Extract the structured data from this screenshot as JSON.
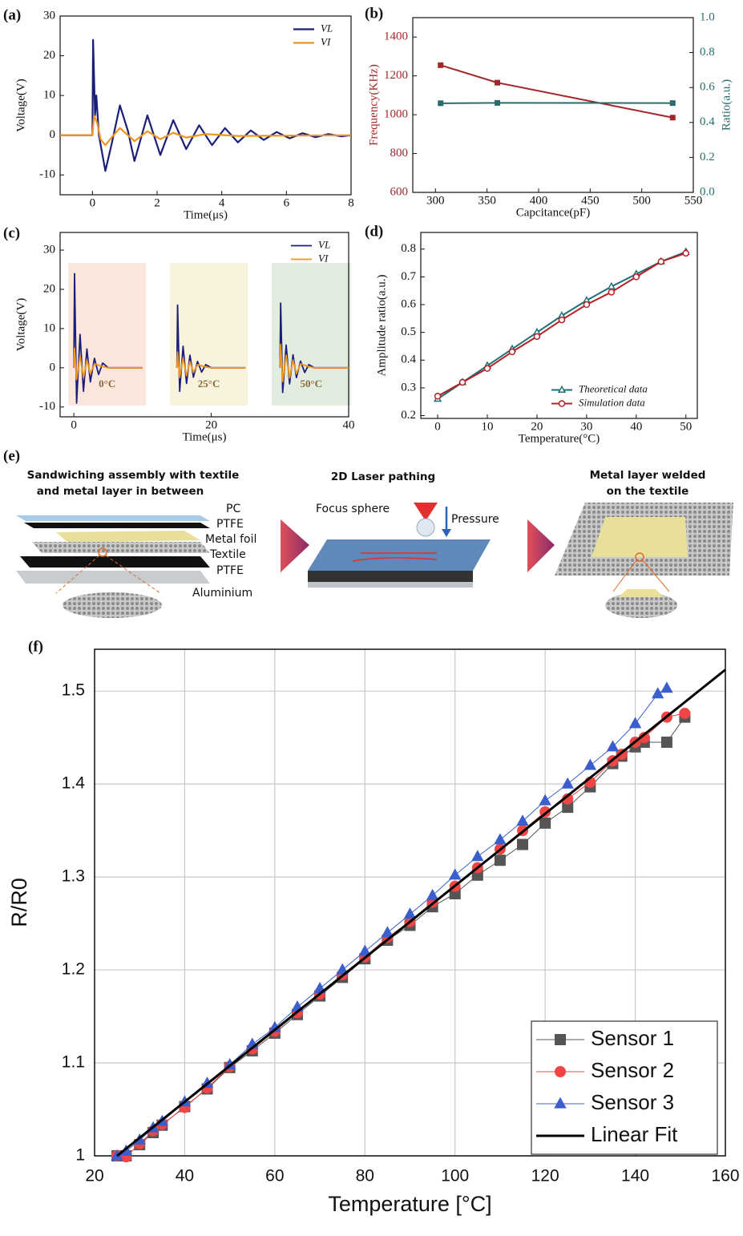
{
  "chart_data": [
    {
      "type": "line",
      "label": "(a)",
      "xlabel": "Time(μs)",
      "ylabel": "Voltage(V)",
      "xlim": [
        -1,
        8
      ],
      "xticks": [
        0,
        2,
        4,
        6,
        8
      ],
      "ylim": [
        -15,
        30
      ],
      "yticks": [
        -10,
        0,
        10,
        20,
        30
      ],
      "legend": "upper right",
      "series": [
        {
          "name": "VL",
          "color": "#1b1f7a",
          "linewidth": 2.2,
          "x": [
            -1,
            0,
            0.02,
            0.08,
            0.12,
            0.2,
            0.4,
            0.6,
            0.85,
            1.1,
            1.3,
            1.7,
            2.1,
            2.5,
            2.9,
            3.3,
            3.7,
            4.1,
            4.5,
            4.9,
            5.3,
            5.7,
            6.1,
            6.5,
            6.9,
            7.3,
            7.7,
            8
          ],
          "values": [
            0,
            0,
            24,
            5,
            10,
            0,
            -9,
            -2,
            7.5,
            1,
            -6.5,
            5,
            -5,
            3.8,
            -3.5,
            2.5,
            -2.5,
            1.8,
            -1.8,
            1.2,
            -1.2,
            0.8,
            -0.8,
            0.5,
            -0.5,
            0.3,
            -0.3,
            0
          ]
        },
        {
          "name": "VI",
          "color": "#f0941c",
          "linewidth": 2.2,
          "x": [
            -1,
            0,
            0.05,
            0.15,
            0.25,
            0.4,
            0.6,
            0.85,
            1.3,
            1.7,
            2.1,
            2.5,
            2.9,
            3.5,
            4.5,
            8
          ],
          "values": [
            0,
            0,
            5,
            3,
            -1,
            -2.5,
            -0.5,
            1.8,
            -1.5,
            1,
            -1,
            0.6,
            -0.6,
            0.3,
            -0.2,
            0
          ]
        }
      ]
    },
    {
      "type": "line",
      "label": "(b)",
      "xlabel": "Capcitance(pF)",
      "ylabel": "Frequency(KHz)",
      "y2label": "Ratio(a.u.)",
      "xlim": [
        278,
        550
      ],
      "xticks": [
        300,
        350,
        400,
        450,
        500,
        550
      ],
      "ylim": [
        600,
        1500
      ],
      "yticks": [
        600,
        800,
        1000,
        1200,
        1400
      ],
      "y2lim": [
        0,
        1
      ],
      "y2ticks": [
        {
          "value": 0,
          "label": "0.0"
        },
        0.2,
        0.4,
        0.6,
        0.8,
        {
          "value": 1,
          "label": "1.0"
        }
      ],
      "series": [
        {
          "color": "#a3262a",
          "marker": "square",
          "linewidth": 2,
          "x": [
            305,
            360,
            530
          ],
          "values": [
            1255,
            1165,
            985
          ]
        },
        {
          "color": "#2a6b6e",
          "marker": "square",
          "linewidth": 2,
          "axis": "y2",
          "x": [
            305,
            360,
            530
          ],
          "values": [
            0.51,
            0.512,
            0.511
          ]
        }
      ]
    },
    {
      "type": "line",
      "label": "(c)",
      "xlabel": "Time(μs)",
      "ylabel": "Voltage(V)",
      "xlim": [
        -2,
        40
      ],
      "xticks": [
        0,
        20,
        40
      ],
      "ylim": [
        -12.5,
        34.5
      ],
      "yticks": [
        -10,
        0,
        10,
        20,
        30
      ],
      "legend": "upper right",
      "regions": [
        {
          "label": "0°C",
          "x": [
            -0.8,
            10.5
          ],
          "color": "#fbe6dc"
        },
        {
          "label": "25°C",
          "x": [
            14,
            25.3
          ],
          "color": "#f8f3dc"
        },
        {
          "label": "50°C",
          "x": [
            28.8,
            40.3
          ],
          "color": "#e2ecdf"
        }
      ],
      "series": [
        {
          "name": "VL",
          "color": "#1b1f7a",
          "linewidth": 1.8,
          "x": [
            0,
            0.1,
            0.4,
            0.9,
            1.4,
            1.9,
            2.4,
            3,
            3.6,
            4.2,
            5,
            10,
            12,
            15,
            15.1,
            15.4,
            15.9,
            16.4,
            16.9,
            17.4,
            18,
            18.6,
            19.2,
            20,
            25,
            27,
            30,
            30.1,
            30.4,
            30.9,
            31.4,
            31.9,
            32.4,
            33,
            33.6,
            34.2,
            35,
            40
          ],
          "values": [
            0,
            24,
            -9,
            8.5,
            -6,
            4.8,
            -3.6,
            2.4,
            -1.7,
            1.2,
            0,
            0,
            null,
            0,
            16,
            -6,
            5.5,
            -4,
            3.2,
            -2.4,
            1.6,
            -1.1,
            0.8,
            0,
            0,
            null,
            0,
            16.5,
            -6.3,
            5.8,
            -4.1,
            3.3,
            -2.5,
            1.7,
            -1.2,
            0.8,
            0,
            0
          ]
        },
        {
          "name": "VI",
          "color": "#f0941c",
          "linewidth": 1.8,
          "x": [
            0,
            0.1,
            0.4,
            0.9,
            1.4,
            1.9,
            2.4,
            3,
            4,
            5,
            10,
            12,
            15,
            15.1,
            15.4,
            15.9,
            16.4,
            16.9,
            17.4,
            18,
            19,
            20,
            25,
            27,
            30,
            30.1,
            30.4,
            30.9,
            31.4,
            31.9,
            32.4,
            33,
            34,
            35,
            40
          ],
          "values": [
            0,
            5,
            -3,
            3,
            -2.5,
            2,
            -1.5,
            1,
            0.4,
            0,
            0,
            null,
            0,
            4,
            -2.5,
            2.5,
            -2,
            1.6,
            -1.2,
            0.8,
            0.3,
            0,
            0,
            null,
            0,
            6,
            -3.5,
            3.2,
            -2.6,
            2,
            -1.5,
            1,
            0.4,
            0,
            0
          ]
        }
      ]
    },
    {
      "type": "line",
      "label": "(d)",
      "xlabel": "Temperature(°C)",
      "ylabel": "Amplitude ratio(a.u.)",
      "xlim": [
        -3.4,
        52.3
      ],
      "xticks": [
        0,
        10,
        20,
        30,
        40,
        50
      ],
      "ylim": [
        0.19,
        0.86
      ],
      "yticks": [
        0.2,
        0.3,
        0.4,
        0.5,
        0.6,
        0.7,
        0.8
      ],
      "legend": "lower right",
      "series": [
        {
          "name": "Theoretical data",
          "color": "#1f6f78",
          "marker": "triangle-open",
          "linewidth": 2,
          "x": [
            0,
            5,
            10,
            15,
            20,
            25,
            30,
            35,
            40,
            45,
            50
          ],
          "values": [
            0.26,
            0.32,
            0.38,
            0.44,
            0.5,
            0.56,
            0.615,
            0.665,
            0.71,
            0.755,
            0.79
          ]
        },
        {
          "name": "Simulation data",
          "color": "#b52025",
          "marker": "circle-open",
          "linewidth": 2,
          "x": [
            0,
            5,
            10,
            15,
            20,
            25,
            30,
            35,
            40,
            45,
            50
          ],
          "values": [
            0.27,
            0.32,
            0.37,
            0.43,
            0.485,
            0.545,
            0.6,
            0.645,
            0.7,
            0.755,
            0.785
          ]
        }
      ]
    },
    {
      "type": "line",
      "label": "(f)",
      "xlabel": "Temperature [°C]",
      "ylabel": "R/R0",
      "grid": true,
      "legend": "lower right",
      "xlim": [
        20,
        160
      ],
      "xticks": [
        20,
        40,
        60,
        80,
        100,
        120,
        140,
        160
      ],
      "ylim": [
        1,
        1.545
      ],
      "yticks": [
        1,
        1.1,
        1.2,
        1.3,
        1.4,
        1.5
      ],
      "series": [
        {
          "name": "Sensor 1",
          "color": "#555555",
          "marker": "square",
          "linewidth": 1,
          "x": [
            25,
            27,
            30,
            33,
            35,
            40,
            45,
            50,
            55,
            60,
            65,
            70,
            75,
            80,
            85,
            90,
            95,
            100,
            105,
            110,
            115,
            120,
            125,
            130,
            135,
            137,
            140,
            142,
            147,
            151
          ],
          "values": [
            1,
            1,
            1.012,
            1.025,
            1.033,
            1.053,
            1.072,
            1.095,
            1.113,
            1.132,
            1.152,
            1.172,
            1.192,
            1.212,
            1.232,
            1.248,
            1.268,
            1.282,
            1.302,
            1.318,
            1.335,
            1.358,
            1.375,
            1.397,
            1.422,
            1.43,
            1.44,
            1.445,
            1.445,
            1.472
          ]
        },
        {
          "name": "Sensor 2",
          "color": "#f04545",
          "marker": "circle",
          "linewidth": 1,
          "x": [
            25,
            27,
            30,
            33,
            35,
            40,
            45,
            50,
            55,
            60,
            65,
            70,
            75,
            80,
            85,
            90,
            95,
            100,
            105,
            110,
            115,
            120,
            125,
            130,
            135,
            137,
            140,
            142,
            147,
            151
          ],
          "values": [
            1,
            0.999,
            1.013,
            1.027,
            1.034,
            1.052,
            1.073,
            1.096,
            1.115,
            1.134,
            1.154,
            1.174,
            1.195,
            1.214,
            1.235,
            1.252,
            1.273,
            1.29,
            1.31,
            1.33,
            1.35,
            1.37,
            1.384,
            1.402,
            1.425,
            1.432,
            1.445,
            1.45,
            1.472,
            1.476
          ]
        },
        {
          "name": "Sensor 3",
          "color": "#3a5fcd",
          "marker": "triangle",
          "linewidth": 1,
          "x": [
            25,
            27,
            30,
            33,
            35,
            40,
            45,
            50,
            55,
            60,
            65,
            70,
            75,
            80,
            85,
            90,
            95,
            100,
            105,
            110,
            115,
            120,
            125,
            130,
            135,
            140,
            145,
            147
          ],
          "values": [
            1,
            1.005,
            1.017,
            1.03,
            1.037,
            1.058,
            1.078,
            1.098,
            1.12,
            1.138,
            1.16,
            1.18,
            1.2,
            1.22,
            1.24,
            1.26,
            1.28,
            1.302,
            1.322,
            1.34,
            1.36,
            1.382,
            1.4,
            1.42,
            1.44,
            1.465,
            1.497,
            1.503
          ]
        },
        {
          "name": "Linear Fit",
          "color": "#000000",
          "linewidth": 3,
          "x": [
            25,
            160
          ],
          "values": [
            1,
            1.523
          ]
        }
      ]
    }
  ],
  "panel_e": {
    "label": "(e)",
    "steps": [
      {
        "title": [
          "Sandwiching assembly with textile",
          "and metal layer in between"
        ],
        "layers": [
          "PC",
          "PTFE",
          "Metal foil",
          "Textile",
          "PTFE",
          "Aluminium"
        ]
      },
      {
        "title": [
          "2D Laser pathing"
        ],
        "labels": [
          "Focus sphere",
          "Pressure"
        ]
      },
      {
        "title": [
          "Metal layer welded",
          "on the textile"
        ]
      }
    ]
  }
}
